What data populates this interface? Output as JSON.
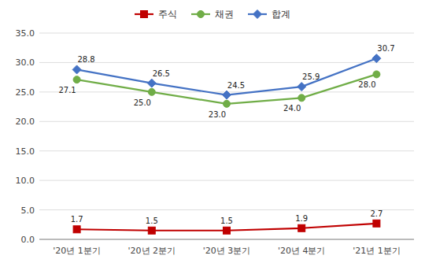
{
  "chart_data": {
    "type": "line",
    "categories": [
      "'20년 1분기",
      "'20년 2분기",
      "'20년 3분기",
      "'20년 4분기",
      "'21년 1분기"
    ],
    "series": [
      {
        "name": "주식",
        "color": "#C00000",
        "marker": "square",
        "values": [
          1.7,
          1.5,
          1.5,
          1.9,
          2.7
        ]
      },
      {
        "name": "채권",
        "color": "#70AD47",
        "marker": "circle",
        "values": [
          27.1,
          25.0,
          23.0,
          24.0,
          28.0
        ],
        "value_labels": [
          "27.1",
          "25.0",
          "23.0",
          "24.0",
          "28.0"
        ]
      },
      {
        "name": "합계",
        "color": "#4472C4",
        "marker": "diamond",
        "values": [
          28.8,
          26.5,
          24.5,
          25.9,
          30.7
        ]
      }
    ],
    "ylim": [
      0,
      35
    ],
    "yticks": [
      {
        "value": 0,
        "label": "0.0"
      },
      {
        "value": 5,
        "label": "5.0"
      },
      {
        "value": 10,
        "label": "10.0"
      },
      {
        "value": 15,
        "label": "15.0"
      },
      {
        "value": 20,
        "label": "20.0"
      },
      {
        "value": 25,
        "label": "25.0"
      },
      {
        "value": 30,
        "label": "30.0"
      },
      {
        "value": 35,
        "label": "35.0"
      }
    ],
    "grid": true,
    "legend": "top",
    "data_labels": true
  }
}
